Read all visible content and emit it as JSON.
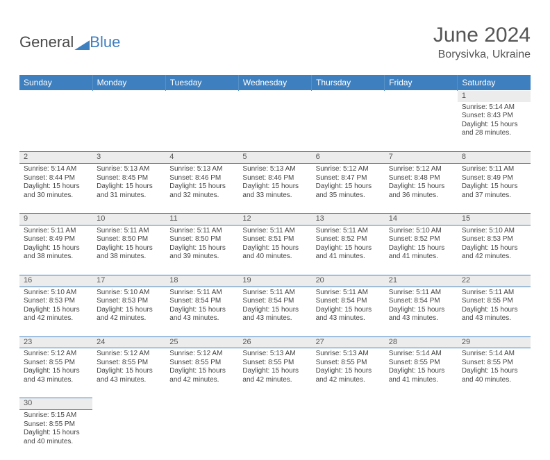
{
  "brand": {
    "name1": "General",
    "name2": "Blue",
    "color_accent": "#3d7fbf",
    "color_text": "#4a4a4a"
  },
  "header": {
    "title": "June 2024",
    "location": "Borysivka, Ukraine"
  },
  "calendar": {
    "day_headers": [
      "Sunday",
      "Monday",
      "Tuesday",
      "Wednesday",
      "Thursday",
      "Friday",
      "Saturday"
    ],
    "header_bg": "#3d7fbf",
    "header_fg": "#ffffff",
    "daynum_bg": "#ececec",
    "border_color": "#3d7fbf",
    "cell_fontsize": 10,
    "weeks": [
      [
        null,
        null,
        null,
        null,
        null,
        null,
        {
          "n": "1",
          "sunrise": "5:14 AM",
          "sunset": "8:43 PM",
          "day_h": "15",
          "day_m": "28"
        }
      ],
      [
        {
          "n": "2",
          "sunrise": "5:14 AM",
          "sunset": "8:44 PM",
          "day_h": "15",
          "day_m": "30"
        },
        {
          "n": "3",
          "sunrise": "5:13 AM",
          "sunset": "8:45 PM",
          "day_h": "15",
          "day_m": "31"
        },
        {
          "n": "4",
          "sunrise": "5:13 AM",
          "sunset": "8:46 PM",
          "day_h": "15",
          "day_m": "32"
        },
        {
          "n": "5",
          "sunrise": "5:13 AM",
          "sunset": "8:46 PM",
          "day_h": "15",
          "day_m": "33"
        },
        {
          "n": "6",
          "sunrise": "5:12 AM",
          "sunset": "8:47 PM",
          "day_h": "15",
          "day_m": "35"
        },
        {
          "n": "7",
          "sunrise": "5:12 AM",
          "sunset": "8:48 PM",
          "day_h": "15",
          "day_m": "36"
        },
        {
          "n": "8",
          "sunrise": "5:11 AM",
          "sunset": "8:49 PM",
          "day_h": "15",
          "day_m": "37"
        }
      ],
      [
        {
          "n": "9",
          "sunrise": "5:11 AM",
          "sunset": "8:49 PM",
          "day_h": "15",
          "day_m": "38"
        },
        {
          "n": "10",
          "sunrise": "5:11 AM",
          "sunset": "8:50 PM",
          "day_h": "15",
          "day_m": "38"
        },
        {
          "n": "11",
          "sunrise": "5:11 AM",
          "sunset": "8:50 PM",
          "day_h": "15",
          "day_m": "39"
        },
        {
          "n": "12",
          "sunrise": "5:11 AM",
          "sunset": "8:51 PM",
          "day_h": "15",
          "day_m": "40"
        },
        {
          "n": "13",
          "sunrise": "5:11 AM",
          "sunset": "8:52 PM",
          "day_h": "15",
          "day_m": "41"
        },
        {
          "n": "14",
          "sunrise": "5:10 AM",
          "sunset": "8:52 PM",
          "day_h": "15",
          "day_m": "41"
        },
        {
          "n": "15",
          "sunrise": "5:10 AM",
          "sunset": "8:53 PM",
          "day_h": "15",
          "day_m": "42"
        }
      ],
      [
        {
          "n": "16",
          "sunrise": "5:10 AM",
          "sunset": "8:53 PM",
          "day_h": "15",
          "day_m": "42"
        },
        {
          "n": "17",
          "sunrise": "5:10 AM",
          "sunset": "8:53 PM",
          "day_h": "15",
          "day_m": "42"
        },
        {
          "n": "18",
          "sunrise": "5:11 AM",
          "sunset": "8:54 PM",
          "day_h": "15",
          "day_m": "43"
        },
        {
          "n": "19",
          "sunrise": "5:11 AM",
          "sunset": "8:54 PM",
          "day_h": "15",
          "day_m": "43"
        },
        {
          "n": "20",
          "sunrise": "5:11 AM",
          "sunset": "8:54 PM",
          "day_h": "15",
          "day_m": "43"
        },
        {
          "n": "21",
          "sunrise": "5:11 AM",
          "sunset": "8:54 PM",
          "day_h": "15",
          "day_m": "43"
        },
        {
          "n": "22",
          "sunrise": "5:11 AM",
          "sunset": "8:55 PM",
          "day_h": "15",
          "day_m": "43"
        }
      ],
      [
        {
          "n": "23",
          "sunrise": "5:12 AM",
          "sunset": "8:55 PM",
          "day_h": "15",
          "day_m": "43"
        },
        {
          "n": "24",
          "sunrise": "5:12 AM",
          "sunset": "8:55 PM",
          "day_h": "15",
          "day_m": "43"
        },
        {
          "n": "25",
          "sunrise": "5:12 AM",
          "sunset": "8:55 PM",
          "day_h": "15",
          "day_m": "42"
        },
        {
          "n": "26",
          "sunrise": "5:13 AM",
          "sunset": "8:55 PM",
          "day_h": "15",
          "day_m": "42"
        },
        {
          "n": "27",
          "sunrise": "5:13 AM",
          "sunset": "8:55 PM",
          "day_h": "15",
          "day_m": "42"
        },
        {
          "n": "28",
          "sunrise": "5:14 AM",
          "sunset": "8:55 PM",
          "day_h": "15",
          "day_m": "41"
        },
        {
          "n": "29",
          "sunrise": "5:14 AM",
          "sunset": "8:55 PM",
          "day_h": "15",
          "day_m": "40"
        }
      ],
      [
        {
          "n": "30",
          "sunrise": "5:15 AM",
          "sunset": "8:55 PM",
          "day_h": "15",
          "day_m": "40"
        },
        null,
        null,
        null,
        null,
        null,
        null
      ]
    ],
    "labels": {
      "sunrise": "Sunrise:",
      "sunset": "Sunset:",
      "daylight_prefix": "Daylight:",
      "hours_word": "hours",
      "and_word": "and",
      "minutes_word": "minutes."
    }
  }
}
